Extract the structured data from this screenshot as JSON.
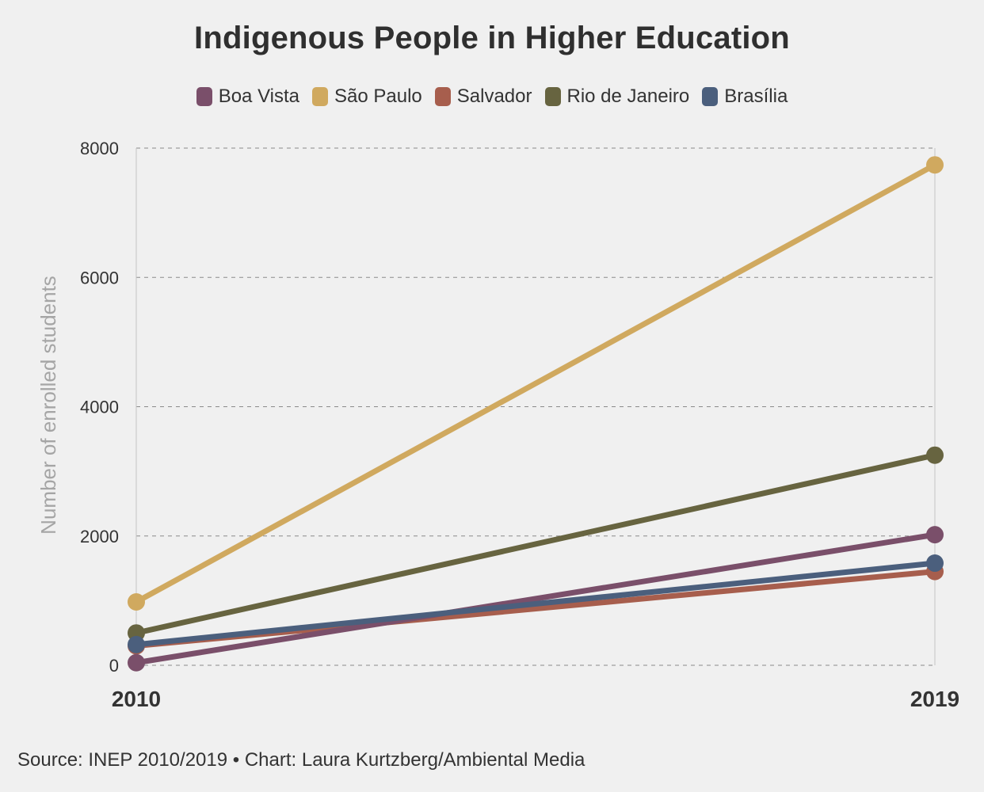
{
  "title": "Indigenous People in Higher Education",
  "footer": "Source: INEP 2010/2019 • Chart: Laura Kurtzberg/Ambiental Media",
  "chart_data": {
    "type": "line",
    "title": "Indigenous People in Higher Education",
    "xlabel": "",
    "ylabel": "Number of enrolled students",
    "x": [
      "2010",
      "2019"
    ],
    "ylim": [
      0,
      8000
    ],
    "yticks": [
      "0",
      "2000",
      "4000",
      "6000",
      "8000"
    ],
    "grid": true,
    "legend_position": "top-center",
    "series": [
      {
        "name": "Boa Vista",
        "color": "#7a4f6a",
        "values": [
          40,
          2020
        ]
      },
      {
        "name": "São Paulo",
        "color": "#d0a95f",
        "values": [
          980,
          7740
        ]
      },
      {
        "name": "Salvador",
        "color": "#a75e4d",
        "values": [
          300,
          1450
        ]
      },
      {
        "name": "Rio de Janeiro",
        "color": "#676440",
        "values": [
          500,
          3250
        ]
      },
      {
        "name": "Brasília",
        "color": "#4b5f7d",
        "values": [
          320,
          1580
        ]
      }
    ]
  }
}
